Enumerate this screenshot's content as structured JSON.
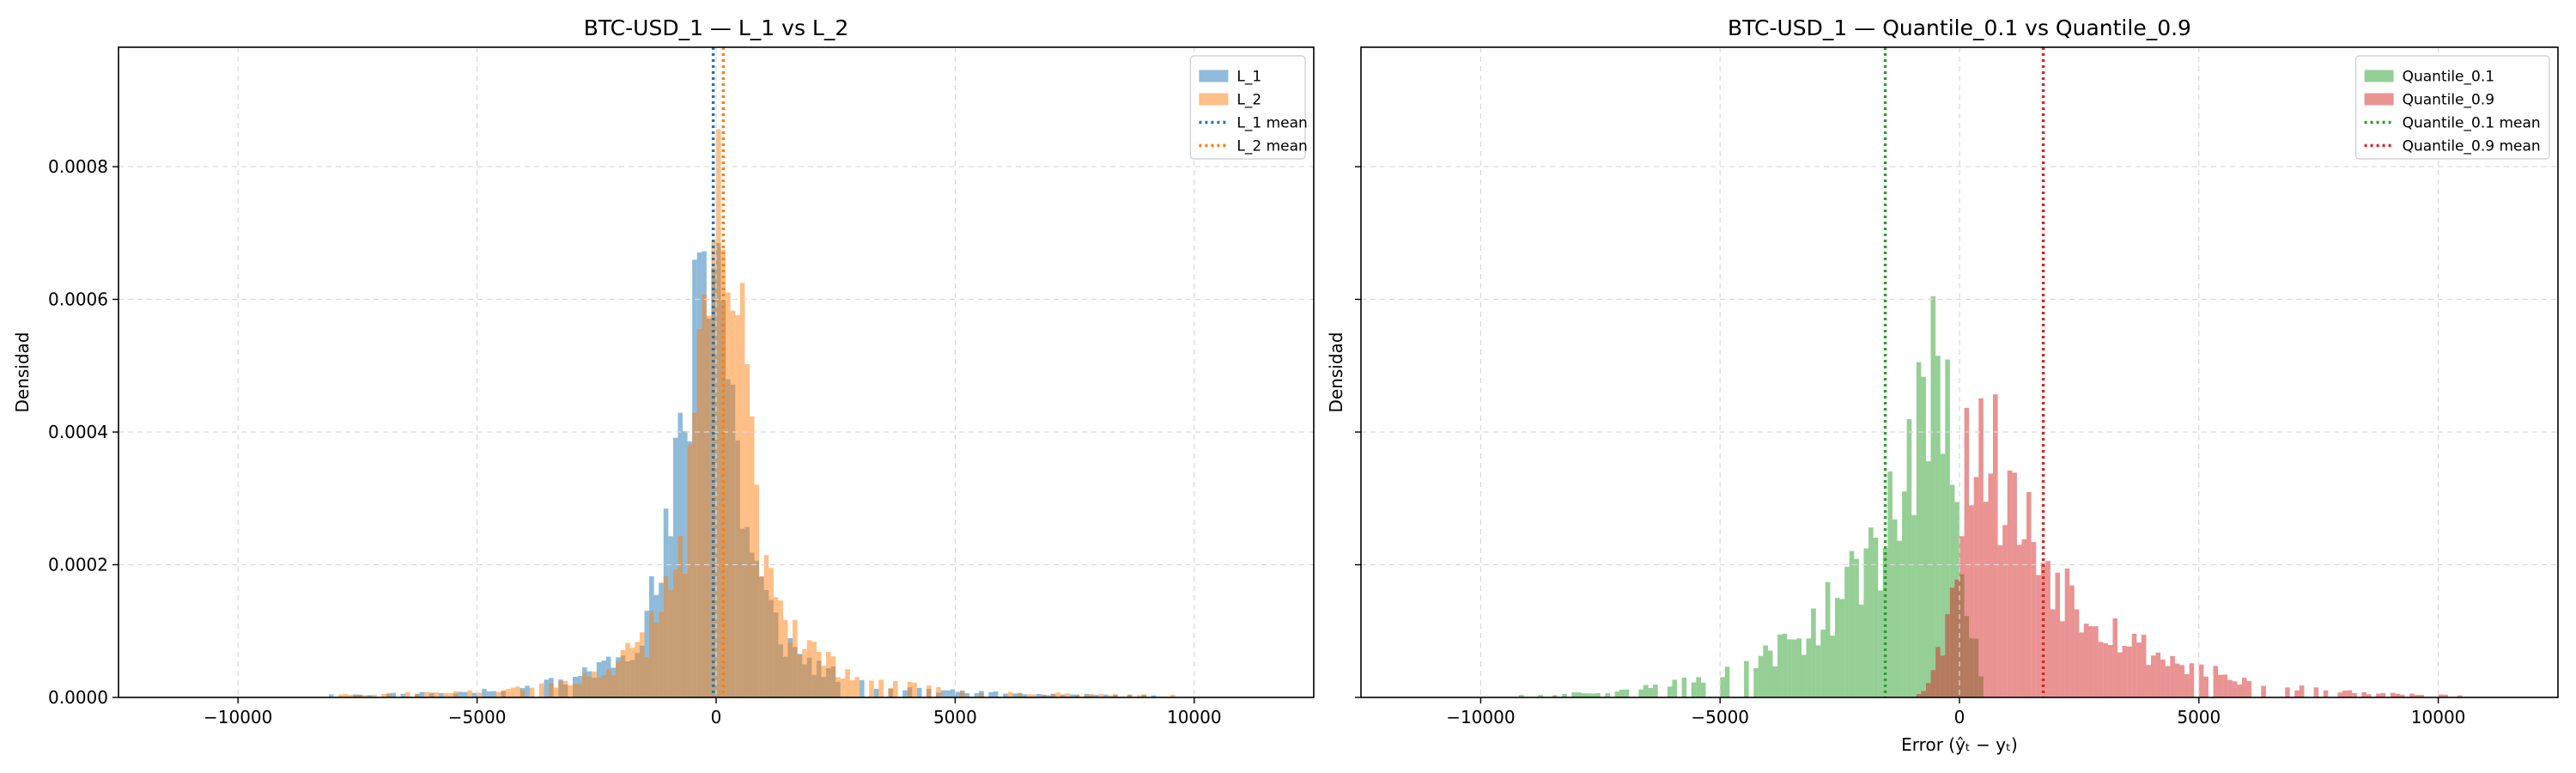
{
  "colors": {
    "blue": "#1f77b4",
    "orange": "#ff7f0e",
    "green": "#2ca02c",
    "red": "#d62728",
    "grid": "#d9d9d9"
  },
  "chart_data": [
    {
      "type": "histogram",
      "title": "BTC-USD_1 — L_1 vs L_2",
      "xlabel": "",
      "ylabel": "Densidad",
      "xlim": [
        -12500,
        12500
      ],
      "ylim": [
        0,
        0.00098
      ],
      "xticks": [
        -10000,
        -5000,
        0,
        5000,
        10000
      ],
      "xtick_labels": [
        "−10000",
        "−5000",
        "0",
        "5000",
        "10000"
      ],
      "yticks": [
        0,
        0.0002,
        0.0004,
        0.0006,
        0.0008
      ],
      "ytick_labels": [
        "0.0000",
        "0.0002",
        "0.0004",
        "0.0006",
        "0.0008"
      ],
      "grid": true,
      "legend": "top-right",
      "series": [
        {
          "name": "L_1",
          "color": "blue",
          "shape": "peak",
          "center": -150,
          "scale": 850,
          "peak": 0.00076,
          "min": -8300,
          "max": 9500,
          "seed": 11
        },
        {
          "name": "L_2",
          "color": "orange",
          "shape": "peak",
          "center": 150,
          "scale": 950,
          "peak": 0.00068,
          "min": -8000,
          "max": 9800,
          "seed": 23
        }
      ],
      "mean_lines": [
        {
          "name": "L_1 mean",
          "color": "blue",
          "value": -60
        },
        {
          "name": "L_2 mean",
          "color": "orange",
          "value": 150
        }
      ]
    },
    {
      "type": "histogram",
      "title": "BTC-USD_1 — Quantile_0.1 vs Quantile_0.9",
      "xlabel": "Error (ŷₜ − yₜ)",
      "ylabel": "Densidad",
      "xlim": [
        -12500,
        12500
      ],
      "ylim": [
        0,
        0.00098
      ],
      "xticks": [
        -10000,
        -5000,
        0,
        5000,
        10000
      ],
      "xtick_labels": [
        "−10000",
        "−5000",
        "0",
        "5000",
        "10000"
      ],
      "yticks": [
        0,
        0.0002,
        0.0004,
        0.0006,
        0.0008
      ],
      "ytick_labels": [
        "",
        "",
        "",
        "",
        ""
      ],
      "grid": true,
      "legend": "top-right",
      "series": [
        {
          "name": "Quantile_0.1",
          "color": "green",
          "shape": "left-skew",
          "center": -400,
          "scale": 1300,
          "peak": 0.0005,
          "min": -11500,
          "max": 500,
          "seed": 37
        },
        {
          "name": "Quantile_0.9",
          "color": "red",
          "shape": "right-skew",
          "center": 400,
          "scale": 1500,
          "peak": 0.00042,
          "min": -1500,
          "max": 11500,
          "seed": 53
        }
      ],
      "mean_lines": [
        {
          "name": "Quantile_0.1 mean",
          "color": "green",
          "value": -1550
        },
        {
          "name": "Quantile_0.9 mean",
          "color": "red",
          "value": 1750
        }
      ]
    }
  ]
}
